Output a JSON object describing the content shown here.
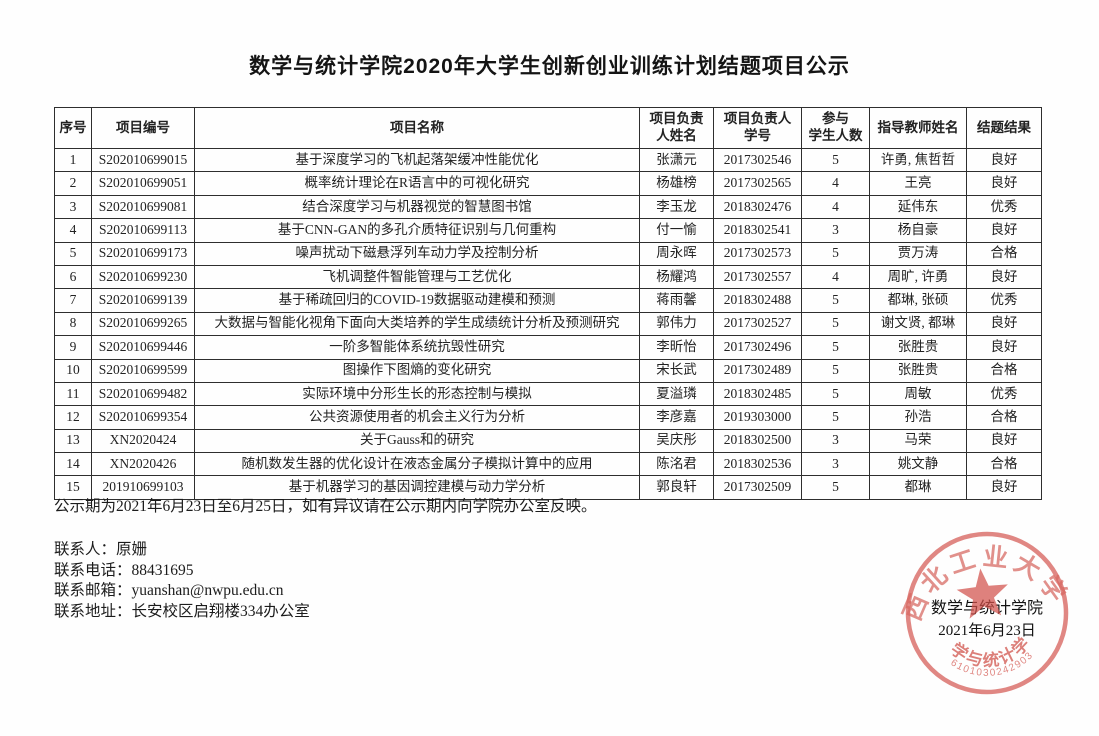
{
  "page": {
    "title": "数学与统计学院2020年大学生创新创业训练计划结题项目公示"
  },
  "table": {
    "headers": [
      "序号",
      "项目编号",
      "项目名称",
      "项目负责\n人姓名",
      "项目负责人\n学号",
      "参与\n学生人数",
      "指导教师姓名",
      "结题结果"
    ],
    "col_keys": [
      "index",
      "project-id",
      "project-name",
      "leader-name",
      "student-id",
      "participant-count",
      "advisor-name",
      "result"
    ],
    "rows": [
      [
        "1",
        "S202010699015",
        "基于深度学习的飞机起落架缓冲性能优化",
        "张潇元",
        "2017302546",
        "5",
        "许勇, 焦哲哲",
        "良好"
      ],
      [
        "2",
        "S202010699051",
        "概率统计理论在R语言中的可视化研究",
        "杨雄榜",
        "2017302565",
        "4",
        "王亮",
        "良好"
      ],
      [
        "3",
        "S202010699081",
        "结合深度学习与机器视觉的智慧图书馆",
        "李玉龙",
        "2018302476",
        "4",
        "延伟东",
        "优秀"
      ],
      [
        "4",
        "S202010699113",
        "基于CNN-GAN的多孔介质特征识别与几何重构",
        "付一愉",
        "2018302541",
        "3",
        "杨自豪",
        "良好"
      ],
      [
        "5",
        "S202010699173",
        "噪声扰动下磁悬浮列车动力学及控制分析",
        "周永晖",
        "2017302573",
        "5",
        "贾万涛",
        "合格"
      ],
      [
        "6",
        "S202010699230",
        "飞机调整件智能管理与工艺优化",
        "杨耀鸿",
        "2017302557",
        "4",
        "周旷, 许勇",
        "良好"
      ],
      [
        "7",
        "S202010699139",
        "基于稀疏回归的COVID-19数据驱动建模和预测",
        "蒋雨馨",
        "2018302488",
        "5",
        "都琳, 张硕",
        "优秀"
      ],
      [
        "8",
        "S202010699265",
        "大数据与智能化视角下面向大类培养的学生成绩统计分析及预测研究",
        "郭伟力",
        "2017302527",
        "5",
        "谢文贤, 都琳",
        "良好"
      ],
      [
        "9",
        "S202010699446",
        "一阶多智能体系统抗毁性研究",
        "李昕怡",
        "2017302496",
        "5",
        "张胜贵",
        "良好"
      ],
      [
        "10",
        "S202010699599",
        "图操作下图熵的变化研究",
        "宋长武",
        "2017302489",
        "5",
        "张胜贵",
        "合格"
      ],
      [
        "11",
        "S202010699482",
        "实际环境中分形生长的形态控制与模拟",
        "夏溢璘",
        "2018302485",
        "5",
        "周敏",
        "优秀"
      ],
      [
        "12",
        "S202010699354",
        "公共资源使用者的机会主义行为分析",
        "李彦嘉",
        "2019303000",
        "5",
        "孙浩",
        "合格"
      ],
      [
        "13",
        "XN2020424",
        "关于Gauss和的研究",
        "吴庆彤",
        "2018302500",
        "3",
        "马荣",
        "良好"
      ],
      [
        "14",
        "XN2020426",
        "随机数发生器的优化设计在液态金属分子模拟计算中的应用",
        "陈洺君",
        "2018302536",
        "3",
        "姚文静",
        "合格"
      ],
      [
        "15",
        "201910699103",
        "基于机器学习的基因调控建模与动力学分析",
        "郭良轩",
        "2017302509",
        "5",
        "都琳",
        "良好"
      ]
    ]
  },
  "notice": {
    "text": "公示期为2021年6月23日至6月25日，如有异议请在公示期内向学院办公室反映。"
  },
  "contacts": [
    {
      "label": "联系人：",
      "value": "原姗"
    },
    {
      "label": "联系电话：",
      "value": "88431695"
    },
    {
      "label": "联系邮箱：",
      "value": "yuanshan@nwpu.edu.cn"
    },
    {
      "label": "联系地址：",
      "value": "长安校区启翔楼334办公室"
    }
  ],
  "signature": {
    "college": "数学与统计学院",
    "date": "2021年6月23日"
  },
  "stamp": {
    "arc_top": "西北工业大学",
    "arc_bottom": "数学与统计学院",
    "serial": "6101030242903",
    "color": "#d2514a"
  }
}
